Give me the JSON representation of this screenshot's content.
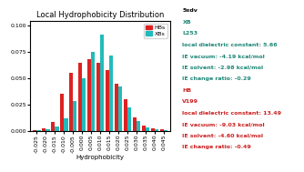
{
  "chart_data": {
    "type": "bar",
    "title": "Local Hydrophobicity Distribution",
    "x_label": "Hydrophobicity",
    "categories": [
      "-0.025",
      "-0.020",
      "-0.015",
      "-0.010",
      "-0.005",
      "0.000",
      "0.005",
      "0.010",
      "0.015",
      "0.020",
      "0.025",
      "0.030",
      "0.035",
      "0.040",
      "0.045"
    ],
    "series": [
      {
        "name": "HBs",
        "color": "#dd2222",
        "values": [
          0.0008,
          0.002,
          0.008,
          0.035,
          0.055,
          0.065,
          0.068,
          0.065,
          0.058,
          0.045,
          0.03,
          0.013,
          0.005,
          0.002,
          0.001
        ]
      },
      {
        "name": "XBs",
        "color": "#22bbbb",
        "values": [
          0.0005,
          0.001,
          0.004,
          0.012,
          0.028,
          0.05,
          0.075,
          0.092,
          0.072,
          0.042,
          0.022,
          0.009,
          0.003,
          0.0015,
          0.0008
        ]
      }
    ],
    "ylim": [
      0,
      0.105
    ],
    "yticks": [
      {
        "value": 0.0,
        "label": "0.000"
      },
      {
        "value": 0.025,
        "label": "0.025"
      },
      {
        "value": 0.05,
        "label": "0.050"
      },
      {
        "value": 0.075,
        "label": "0.075"
      },
      {
        "value": 0.1,
        "label": "0.100"
      }
    ],
    "legend": "upper right",
    "annotations": [
      {
        "text": "5xdv",
        "color": "#000000"
      },
      {
        "text": "XB",
        "color": "#208878"
      },
      {
        "text": "L253",
        "color": "#208878"
      },
      {
        "text": "local dielectric constant: 5.66",
        "color": "#208878"
      },
      {
        "text": "IE vacuum: -4.19 kcal/mol",
        "color": "#208878"
      },
      {
        "text": "IE solvent: -2.98 kcal/mol",
        "color": "#208878"
      },
      {
        "text": "IE change ratio: -0.29",
        "color": "#208878"
      },
      {
        "text": "HB",
        "color": "#cc2222"
      },
      {
        "text": "V199",
        "color": "#cc2222"
      },
      {
        "text": "local dielectric constant: 13.49",
        "color": "#cc2222"
      },
      {
        "text": "IE vacuum: -9.03 kcal/mol",
        "color": "#cc2222"
      },
      {
        "text": "IE solvent: -4.60 kcal/mol",
        "color": "#cc2222"
      },
      {
        "text": "IE change ratio: -0.49",
        "color": "#cc2222"
      }
    ]
  }
}
